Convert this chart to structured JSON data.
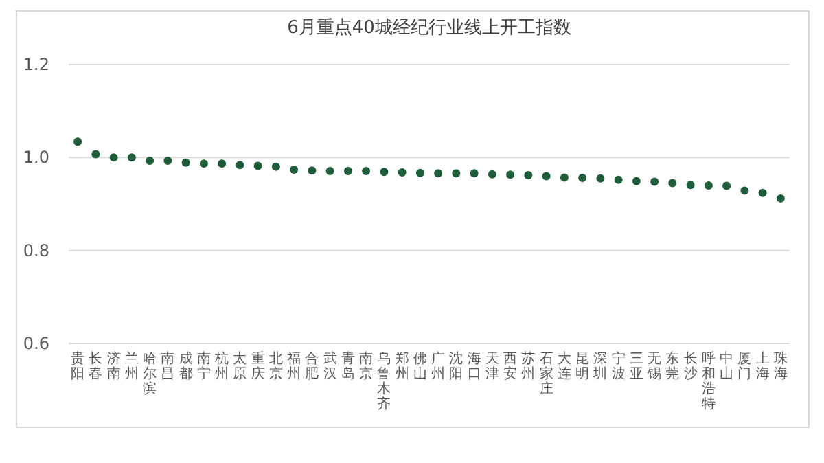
{
  "chart_data": {
    "type": "scatter",
    "title": "6月重点40城经纪行业线上开工指数",
    "categories": [
      "贵阳",
      "长春",
      "济南",
      "兰州",
      "哈尔滨",
      "南昌",
      "成都",
      "南宁",
      "杭州",
      "太原",
      "重庆",
      "北京",
      "福州",
      "合肥",
      "武汉",
      "青岛",
      "南京",
      "乌鲁木齐",
      "郑州",
      "佛山",
      "广州",
      "沈阳",
      "海口",
      "天津",
      "西安",
      "苏州",
      "石家庄",
      "大连",
      "昆明",
      "深圳",
      "宁波",
      "三亚",
      "无锡",
      "东莞",
      "长沙",
      "呼和浩特",
      "中山",
      "厦门",
      "上海",
      "珠海"
    ],
    "series": [
      {
        "color": "#1e5c3a",
        "values": [
          1.034,
          1.007,
          1.0,
          1.0,
          0.993,
          0.993,
          0.989,
          0.987,
          0.987,
          0.984,
          0.982,
          0.98,
          0.974,
          0.972,
          0.971,
          0.971,
          0.971,
          0.969,
          0.968,
          0.967,
          0.966,
          0.966,
          0.966,
          0.964,
          0.963,
          0.962,
          0.96,
          0.957,
          0.956,
          0.955,
          0.952,
          0.949,
          0.948,
          0.945,
          0.941,
          0.94,
          0.939,
          0.929,
          0.924,
          0.912
        ]
      }
    ],
    "ylim": [
      0.6,
      1.2
    ],
    "yticks": [
      0.6,
      0.8,
      {
        "value": 1.0,
        "label": "1.0"
      },
      1.2
    ],
    "grid": "y",
    "marker": "circle"
  }
}
